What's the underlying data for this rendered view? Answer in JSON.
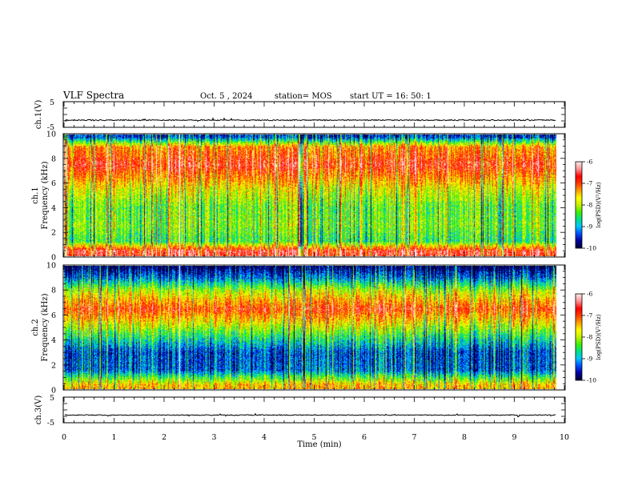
{
  "header": {
    "title": "VLF Spectra",
    "date": "Oct. 5  , 2024",
    "station": "station= MOS",
    "start_ut": "start  UT =   16: 50: 1"
  },
  "colors": {
    "background": "#ffffff",
    "axes": "#000000",
    "trace": "#000000",
    "colormap": [
      "#00003a",
      "#0000a0",
      "#0050ff",
      "#00c8ff",
      "#00e088",
      "#40f000",
      "#c8f000",
      "#ffff00",
      "#ffa000",
      "#ff3c00",
      "#ff0000",
      "#ff9090",
      "#ffe6e6"
    ]
  },
  "chart_data": [
    {
      "type": "line",
      "name": "ch1-waveform",
      "ylabel": "ch.1(V)",
      "ylim": [
        -5,
        5
      ],
      "yticks": [
        5,
        -5
      ],
      "xlim": [
        0,
        10
      ],
      "baseline_value": -2.2,
      "noise_amplitude": 0.4
    },
    {
      "type": "heatmap",
      "name": "ch1-spectrogram",
      "ylabel": "Frequency (kHz)",
      "panel_label": "ch.1",
      "ylim": [
        0,
        10
      ],
      "yticks": [
        "0",
        "2",
        "4",
        "6",
        "8",
        "10"
      ],
      "xlim": [
        0,
        10
      ],
      "data_end_min": 9.83,
      "data_gap_min": 2.3,
      "bands": [
        {
          "freq_khz": 0.4,
          "log_psd": -6.6
        },
        {
          "freq_khz": 1.2,
          "log_psd": -8.5
        },
        {
          "freq_khz": 2.5,
          "log_psd": -8.2
        },
        {
          "freq_khz": 4.0,
          "log_psd": -8.3
        },
        {
          "freq_khz": 5.5,
          "log_psd": -7.8
        },
        {
          "freq_khz": 7.5,
          "log_psd": -6.7
        },
        {
          "freq_khz": 9.0,
          "log_psd": -7.3
        },
        {
          "freq_khz": 9.8,
          "log_psd": -9.4
        }
      ],
      "colorbar": {
        "label": "log(PSD)(V²/Hz)",
        "range": [
          -10,
          -6
        ],
        "ticks": [
          "-6",
          "-7",
          "-8",
          "-9",
          "-10"
        ]
      }
    },
    {
      "type": "heatmap",
      "name": "ch2-spectrogram",
      "ylabel": "Frequency (kHz)",
      "panel_label": "ch.2",
      "ylim": [
        0,
        10
      ],
      "yticks": [
        "0",
        "2",
        "4",
        "6",
        "8",
        "10"
      ],
      "xlim": [
        0,
        10
      ],
      "data_end_min": 9.83,
      "data_gap_min": 2.3,
      "bands": [
        {
          "freq_khz": 0.3,
          "log_psd": -7.5
        },
        {
          "freq_khz": 1.5,
          "log_psd": -9.3
        },
        {
          "freq_khz": 3.0,
          "log_psd": -9.4
        },
        {
          "freq_khz": 4.5,
          "log_psd": -8.4
        },
        {
          "freq_khz": 6.5,
          "log_psd": -6.9
        },
        {
          "freq_khz": 8.0,
          "log_psd": -8.0
        },
        {
          "freq_khz": 9.0,
          "log_psd": -9.2
        },
        {
          "freq_khz": 9.9,
          "log_psd": -9.9
        }
      ],
      "colorbar": {
        "label": "log(PSD)(V²/Hz)",
        "range": [
          -10,
          -6
        ],
        "ticks": [
          "-6",
          "-7",
          "-8",
          "-9",
          "-10"
        ]
      }
    },
    {
      "type": "line",
      "name": "ch3-waveform",
      "ylabel": "ch.3(V)",
      "ylim": [
        -5,
        5
      ],
      "yticks": [
        5,
        -5
      ],
      "xlim": [
        0,
        10
      ],
      "baseline_value": -2.0,
      "noise_amplitude": 0.3
    }
  ],
  "xaxis": {
    "label": "Time  (min)",
    "ticks": [
      "0",
      "1",
      "2",
      "3",
      "4",
      "5",
      "6",
      "7",
      "8",
      "9",
      "10"
    ]
  }
}
